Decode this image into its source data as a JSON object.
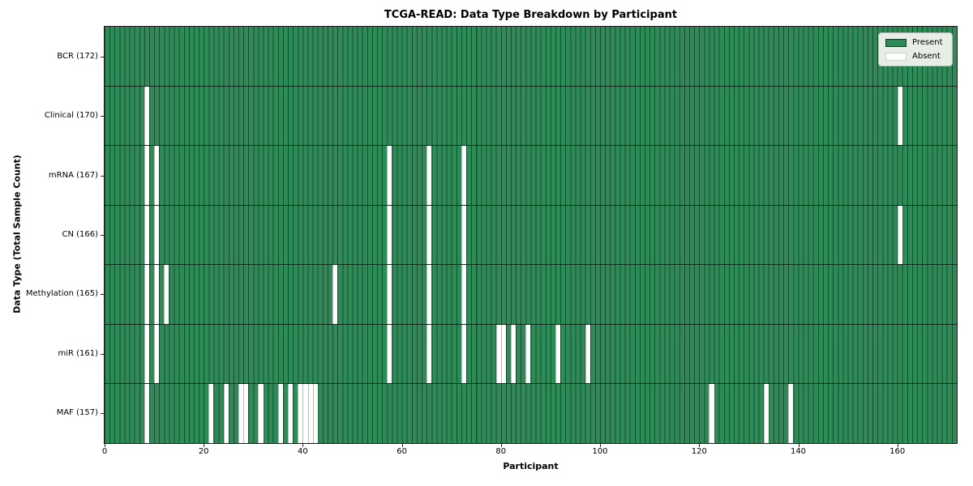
{
  "chart_data": {
    "type": "heatmap",
    "title": "TCGA-READ: Data Type Breakdown by Participant",
    "xlabel": "Participant",
    "ylabel": "Data Type (Total Sample Count)",
    "total_participants": 172,
    "x_ticks": [
      0,
      20,
      40,
      60,
      80,
      100,
      120,
      140,
      160
    ],
    "legend_position": "upper-right",
    "legend": [
      {
        "label": "Present",
        "color": "#2e8b57"
      },
      {
        "label": "Absent",
        "color": "#ffffff"
      }
    ],
    "rows": [
      {
        "name": "BCR",
        "count": 172,
        "label": "BCR (172)",
        "absent_participants": []
      },
      {
        "name": "Clinical",
        "count": 170,
        "label": "Clinical (170)",
        "absent_participants": [
          8,
          160
        ]
      },
      {
        "name": "mRNA",
        "count": 167,
        "label": "mRNA (167)",
        "absent_participants": [
          8,
          10,
          57,
          65,
          72
        ]
      },
      {
        "name": "CN",
        "count": 166,
        "label": "CN (166)",
        "absent_participants": [
          8,
          10,
          57,
          65,
          72,
          160
        ]
      },
      {
        "name": "Methylation",
        "count": 165,
        "label": "Methylation (165)",
        "absent_participants": [
          8,
          10,
          12,
          46,
          57,
          65,
          72
        ]
      },
      {
        "name": "miR",
        "count": 161,
        "label": "miR (161)",
        "absent_participants": [
          8,
          10,
          57,
          65,
          72,
          79,
          80,
          82,
          85,
          91,
          97
        ]
      },
      {
        "name": "MAF",
        "count": 157,
        "label": "MAF (157)",
        "absent_participants": [
          8,
          21,
          24,
          27,
          28,
          31,
          35,
          37,
          39,
          40,
          41,
          42,
          122,
          133,
          138
        ]
      }
    ],
    "colors": {
      "present": "#2e8b57",
      "absent": "#ffffff",
      "cell_edge": "rgba(0,0,0,0.45)",
      "row_divider": "rgba(0,0,0,0.65)",
      "frame": "#1a1a1a"
    }
  }
}
